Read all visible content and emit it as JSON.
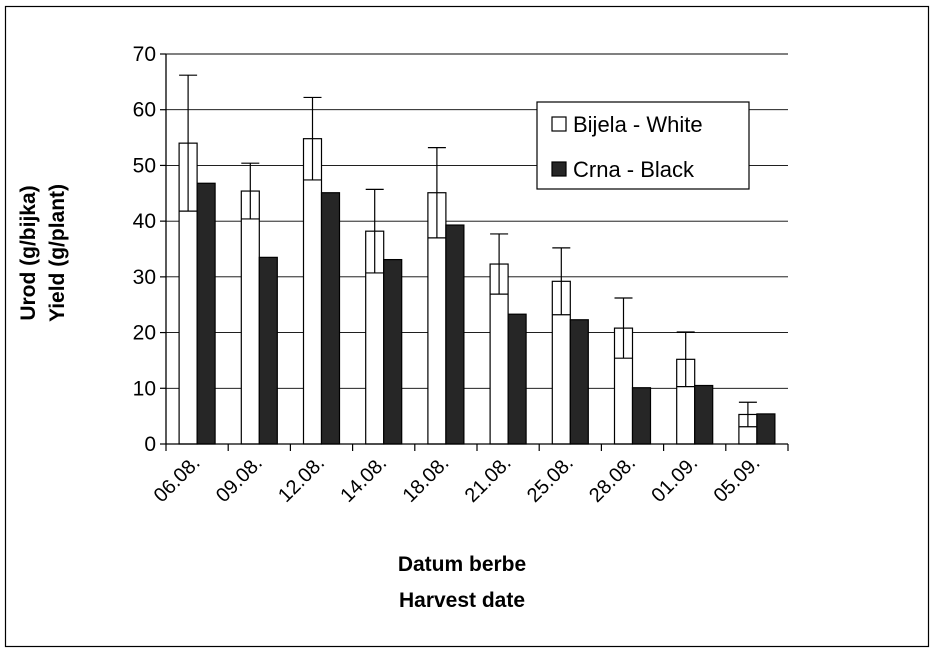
{
  "chart_data": {
    "type": "bar",
    "categories": [
      "06.08.",
      "09.08.",
      "12.08.",
      "14.08.",
      "18.08.",
      "21.08.",
      "25.08.",
      "28.08.",
      "01.09.",
      "05.09."
    ],
    "series": [
      {
        "name": "Bijela - White",
        "color": "#ffffff",
        "values": [
          54,
          45.4,
          54.8,
          38.2,
          45.1,
          32.3,
          29.2,
          20.8,
          15.2,
          5.3
        ],
        "error": [
          12.2,
          5,
          7.4,
          7.5,
          8.1,
          5.4,
          6,
          5.4,
          4.9,
          2.2
        ]
      },
      {
        "name": "Crna - Black",
        "color": "#262626",
        "values": [
          46.8,
          33.5,
          45.1,
          33.1,
          39.3,
          23.3,
          22.3,
          10.1,
          10.5,
          5.4
        ]
      }
    ],
    "xlabel": [
      "Datum berbe",
      "Harvest date"
    ],
    "ylabel": [
      "Urod (g/bijka)",
      "Yield (g/plant)"
    ],
    "ylim": [
      0,
      70
    ],
    "yticks": [
      0,
      10,
      20,
      30,
      40,
      50,
      60,
      70
    ],
    "grid": true,
    "legend_position": "top-right"
  }
}
